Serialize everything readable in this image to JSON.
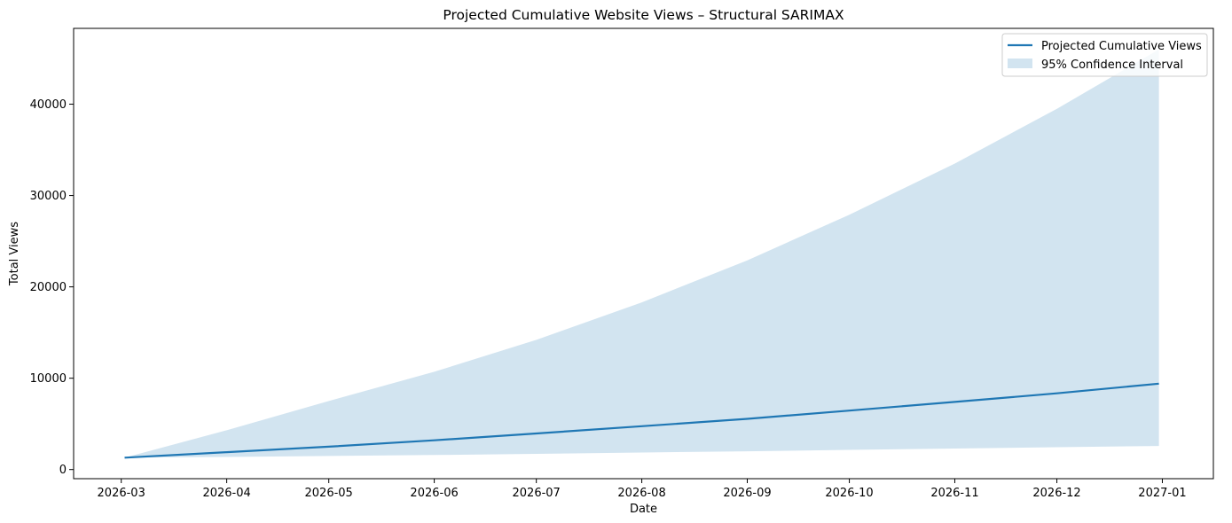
{
  "chart_data": {
    "type": "line",
    "title": "Projected Cumulative Website Views – Structural SARIMAX",
    "xlabel": "Date",
    "ylabel": "Total Views",
    "x_ticks": [
      "2026-03",
      "2026-04",
      "2026-05",
      "2026-06",
      "2026-07",
      "2026-08",
      "2026-09",
      "2026-10",
      "2026-11",
      "2026-12",
      "2027-01"
    ],
    "y_ticks": [
      0,
      10000,
      20000,
      30000,
      40000
    ],
    "xlim": [
      "2026-02-15",
      "2027-01-16"
    ],
    "ylim": [
      -1000,
      48300
    ],
    "grid": false,
    "legend_position": "top-right",
    "colors": {
      "line": "#1f77b4",
      "band": "#1f77b4",
      "band_opacity": 0.2
    },
    "x": [
      "2026-03-02",
      "2026-04-01",
      "2026-05-01",
      "2026-06-01",
      "2026-07-01",
      "2026-08-01",
      "2026-09-01",
      "2026-10-01",
      "2026-11-01",
      "2026-12-01",
      "2026-12-31"
    ],
    "series": [
      {
        "name": "Projected Cumulative Views",
        "kind": "line",
        "values": [
          1300,
          1900,
          2500,
          3200,
          3950,
          4750,
          5550,
          6450,
          7400,
          8350,
          9400
        ]
      },
      {
        "name": "95% Confidence Interval",
        "kind": "band",
        "lower": [
          1300,
          1380,
          1480,
          1590,
          1720,
          1860,
          2000,
          2150,
          2300,
          2450,
          2580
        ],
        "upper": [
          1300,
          4300,
          7500,
          10700,
          14200,
          18300,
          22900,
          27900,
          33500,
          39500,
          46000
        ]
      }
    ]
  }
}
